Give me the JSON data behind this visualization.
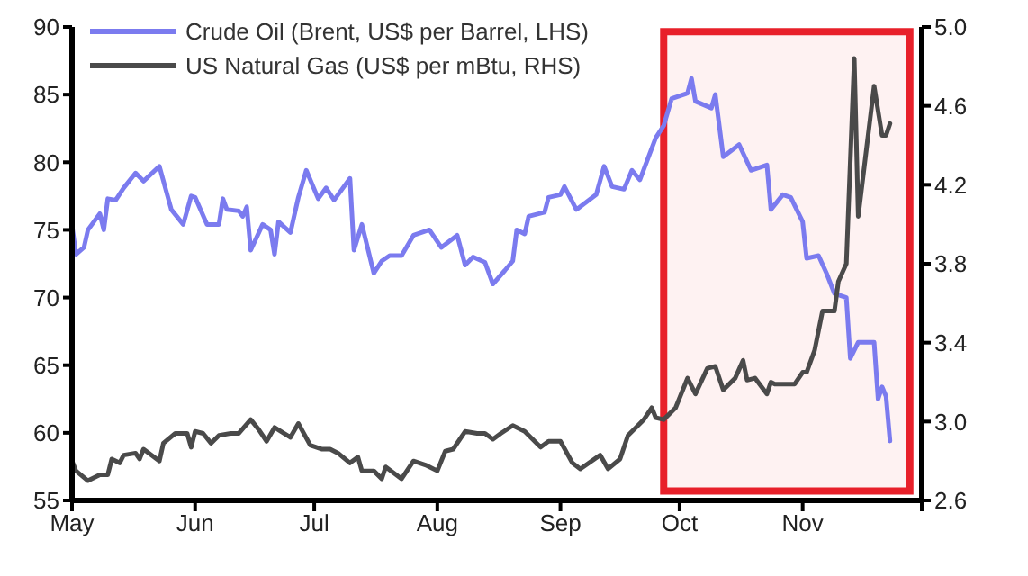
{
  "chart_data": {
    "type": "line",
    "xlim": [
      "--05-01",
      "--12-01"
    ],
    "xticks": [
      {
        "value": "--05-01",
        "label": "May"
      },
      {
        "value": "--06-01",
        "label": "Jun"
      },
      {
        "value": "--07-01",
        "label": "Jul"
      },
      {
        "value": "--08-01",
        "label": "Aug"
      },
      {
        "value": "--09-01",
        "label": "Sep"
      },
      {
        "value": "--10-01",
        "label": "Oct"
      },
      {
        "value": "--11-01",
        "label": "Nov"
      },
      {
        "value": "--12-01",
        "label": null
      }
    ],
    "ylim": [
      55,
      90
    ],
    "yticks": [
      55,
      60,
      65,
      70,
      75,
      80,
      85,
      90
    ],
    "y2lim": [
      2.6,
      5.0
    ],
    "y2ticks": [
      {
        "value": 2.6,
        "label": "2.6"
      },
      {
        "value": 3.0,
        "label": "3.0"
      },
      {
        "value": 3.4,
        "label": "3.4"
      },
      {
        "value": 3.8,
        "label": "3.8"
      },
      {
        "value": 4.2,
        "label": "4.2"
      },
      {
        "value": 4.6,
        "label": "4.6"
      },
      {
        "value": 5.0,
        "label": "5.0"
      }
    ],
    "legend": "top left",
    "marker": "none",
    "line_style": "solid",
    "bands": [
      {
        "axis": "x",
        "from": "--09-27",
        "to": "--11-28",
        "label": null,
        "color": "#e8202a"
      }
    ],
    "series": [
      {
        "name": "Crude Oil (Brent, US$ per Barrel, LHS)",
        "color": "#7b7bef",
        "x": [
          "--05-01",
          "--05-02",
          "--05-04",
          "--05-05",
          "--05-08",
          "--05-09",
          "--05-10",
          "--05-12",
          "--05-14",
          "--05-17",
          "--05-19",
          "--05-23",
          "--05-26",
          "--05-29",
          "--05-31",
          "--06-01",
          "--06-04",
          "--06-07",
          "--06-08",
          "--06-09",
          "--06-12",
          "--06-13",
          "--06-14",
          "--06-15",
          "--06-18",
          "--06-20",
          "--06-21",
          "--06-22",
          "--06-25",
          "--06-27",
          "--06-29",
          "--07-02",
          "--07-04",
          "--07-06",
          "--07-10",
          "--07-11",
          "--07-13",
          "--07-16",
          "--07-18",
          "--07-20",
          "--07-23",
          "--07-26",
          "--07-30",
          "--08-02",
          "--08-06",
          "--08-08",
          "--08-10",
          "--08-13",
          "--08-15",
          "--08-18",
          "--08-20",
          "--08-21",
          "--08-23",
          "--08-24",
          "--08-28",
          "--08-29",
          "--09-01",
          "--09-02",
          "--09-05",
          "--09-10",
          "--09-12",
          "--09-14",
          "--09-17",
          "--09-19",
          "--09-21",
          "--09-25",
          "--09-27",
          "--09-29",
          "--10-03",
          "--10-04",
          "--10-05",
          "--10-09",
          "--10-10",
          "--10-12",
          "--10-16",
          "--10-19",
          "--10-23",
          "--10-24",
          "--10-27",
          "--10-29",
          "--11-01",
          "--11-02",
          "--11-05",
          "--11-07",
          "--11-09",
          "--11-12",
          "--11-13",
          "--11-15",
          "--11-19",
          "--11-20",
          "--11-21",
          "--11-22",
          "--11-23"
        ],
        "values": [
          75.3,
          73.2,
          73.7,
          75,
          76.2,
          75,
          77.3,
          77.2,
          78.1,
          79.2,
          78.6,
          79.7,
          76.5,
          75.4,
          77.5,
          77.4,
          75.4,
          75.4,
          77.3,
          76.5,
          76.4,
          76,
          76.7,
          73.5,
          75.4,
          75,
          73.2,
          75.6,
          74.8,
          77.4,
          79.4,
          77.3,
          78.1,
          77.2,
          78.8,
          73.5,
          75.4,
          71.8,
          72.7,
          73.1,
          73.1,
          74.6,
          75,
          73.7,
          74.6,
          72.4,
          73,
          72.6,
          71,
          72,
          72.7,
          75,
          74.7,
          76,
          76.3,
          77.4,
          77.6,
          78.2,
          76.5,
          77.6,
          79.7,
          78.2,
          78,
          79.4,
          78.7,
          81.8,
          82.7,
          84.7,
          85.1,
          86.2,
          84.5,
          84,
          85,
          80.4,
          81.3,
          79.4,
          79.8,
          76.5,
          77.6,
          77.4,
          75.6,
          72.9,
          73.1,
          71.8,
          70.3,
          70,
          65.5,
          66.7,
          66.7,
          62.5,
          63.4,
          62.7,
          59.4
        ]
      },
      {
        "name": "US Natural Gas (US$ per mBtu, RHS)",
        "color": "#4a4a4a",
        "axis": "y2",
        "x": [
          "--05-01",
          "--05-02",
          "--05-05",
          "--05-08",
          "--05-10",
          "--05-11",
          "--05-13",
          "--05-14",
          "--05-17",
          "--05-18",
          "--05-19",
          "--05-23",
          "--05-24",
          "--05-27",
          "--05-30",
          "--05-31",
          "--06-01",
          "--06-03",
          "--06-05",
          "--06-07",
          "--06-10",
          "--06-12",
          "--06-15",
          "--06-17",
          "--06-19",
          "--06-21",
          "--06-25",
          "--06-27",
          "--06-30",
          "--07-03",
          "--07-05",
          "--07-07",
          "--07-10",
          "--07-12",
          "--07-13",
          "--07-16",
          "--07-18",
          "--07-19",
          "--07-23",
          "--07-26",
          "--07-29",
          "--08-01",
          "--08-03",
          "--08-05",
          "--08-08",
          "--08-11",
          "--08-13",
          "--08-15",
          "--08-17",
          "--08-20",
          "--08-23",
          "--08-27",
          "--08-29",
          "--09-01",
          "--09-04",
          "--09-06",
          "--09-11",
          "--09-13",
          "--09-16",
          "--09-18",
          "--09-20",
          "--09-22",
          "--09-24",
          "--09-25",
          "--09-27",
          "--09-30",
          "--10-03",
          "--10-05",
          "--10-08",
          "--10-10",
          "--10-12",
          "--10-15",
          "--10-17",
          "--10-18",
          "--10-20",
          "--10-23",
          "--10-24",
          "--10-25",
          "--10-30",
          "--11-01",
          "--11-02",
          "--11-04",
          "--11-06",
          "--11-09",
          "--11-10",
          "--11-12",
          "--11-14",
          "--11-15",
          "--11-19",
          "--11-21",
          "--11-22",
          "--11-23"
        ],
        "values": [
          2.8,
          2.75,
          2.7,
          2.73,
          2.73,
          2.81,
          2.79,
          2.83,
          2.84,
          2.81,
          2.86,
          2.8,
          2.89,
          2.94,
          2.94,
          2.87,
          2.95,
          2.94,
          2.89,
          2.93,
          2.94,
          2.94,
          3.01,
          2.96,
          2.9,
          2.97,
          2.92,
          2.99,
          2.88,
          2.86,
          2.86,
          2.84,
          2.79,
          2.82,
          2.75,
          2.75,
          2.71,
          2.77,
          2.71,
          2.8,
          2.78,
          2.75,
          2.85,
          2.86,
          2.95,
          2.94,
          2.94,
          2.91,
          2.94,
          2.98,
          2.95,
          2.87,
          2.9,
          2.9,
          2.79,
          2.76,
          2.83,
          2.76,
          2.81,
          2.93,
          2.97,
          3.01,
          3.07,
          3.02,
          3.01,
          3.07,
          3.22,
          3.14,
          3.27,
          3.28,
          3.16,
          3.22,
          3.31,
          3.21,
          3.22,
          3.14,
          3.2,
          3.19,
          3.19,
          3.25,
          3.25,
          3.36,
          3.56,
          3.56,
          3.71,
          3.8,
          4.84,
          4.04,
          4.7,
          4.45,
          4.45,
          4.51
        ]
      }
    ]
  }
}
